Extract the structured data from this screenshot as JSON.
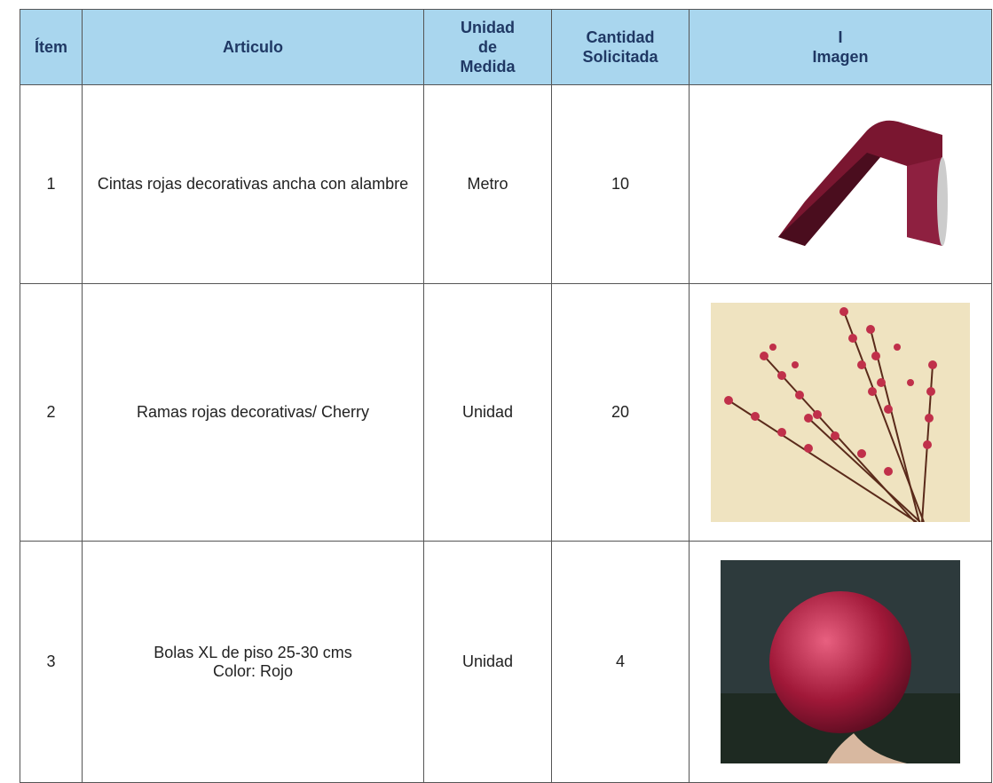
{
  "table": {
    "headers": [
      "Ítem",
      "Articulo",
      "Unidad\nde\nMedida",
      "Cantidad\nSolicitada",
      "I\nImagen"
    ],
    "rows": [
      [
        1,
        "Cintas rojas decorativas ancha con alambre",
        "Metro",
        10
      ],
      [
        2,
        "Ramas rojas decorativas/ Cherry",
        "Unidad",
        20
      ],
      [
        3,
        "Bolas XL de piso 25-30 cms\nColor: Rojo",
        "Unidad",
        4
      ]
    ]
  }
}
